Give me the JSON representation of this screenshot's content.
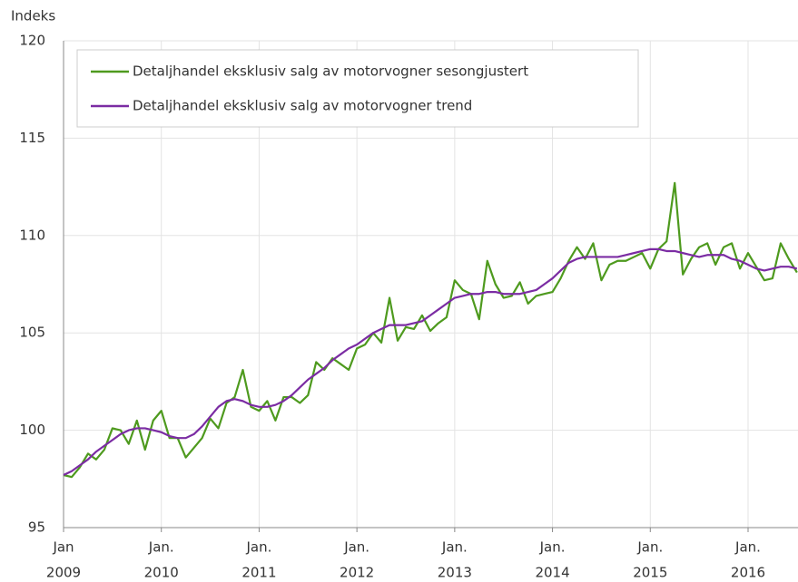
{
  "chart_data": {
    "type": "line",
    "y_label": "Indeks",
    "ylim": [
      95,
      120
    ],
    "yticks": [
      95,
      100,
      105,
      110,
      115,
      120
    ],
    "grid": true,
    "legend": "upper left",
    "categories": [
      [
        "Jan",
        "2009"
      ],
      null,
      null,
      null,
      null,
      null,
      null,
      null,
      null,
      null,
      null,
      null,
      [
        "Jan.",
        "2010"
      ],
      null,
      null,
      null,
      null,
      null,
      null,
      null,
      null,
      null,
      null,
      null,
      [
        "Jan.",
        "2011"
      ],
      null,
      null,
      null,
      null,
      null,
      null,
      null,
      null,
      null,
      null,
      null,
      [
        "Jan.",
        "2012"
      ],
      null,
      null,
      null,
      null,
      null,
      null,
      null,
      null,
      null,
      null,
      null,
      [
        "Jan.",
        "2013"
      ],
      null,
      null,
      null,
      null,
      null,
      null,
      null,
      null,
      null,
      null,
      null,
      [
        "Jan.",
        "2014"
      ],
      null,
      null,
      null,
      null,
      null,
      null,
      null,
      null,
      null,
      null,
      null,
      [
        "Jan.",
        "2015"
      ],
      null,
      null,
      null,
      null,
      null,
      null,
      null,
      null,
      null,
      null,
      null,
      [
        "Jan.",
        "2016"
      ],
      null,
      null,
      null,
      null,
      null,
      null
    ],
    "series": [
      {
        "name": "Detaljhandel eksklusiv salg av motorvogner sesongjustert",
        "color": "#4e9a1e",
        "values": [
          97.7,
          97.6,
          98.1,
          98.8,
          98.5,
          99.0,
          100.1,
          100.0,
          99.3,
          100.5,
          99.0,
          100.5,
          101.0,
          99.6,
          99.6,
          98.6,
          99.1,
          99.6,
          100.6,
          100.1,
          101.4,
          101.7,
          103.1,
          101.2,
          101.0,
          101.5,
          100.5,
          101.7,
          101.7,
          101.4,
          101.8,
          103.5,
          103.1,
          103.7,
          103.4,
          103.1,
          104.2,
          104.4,
          105.0,
          104.5,
          106.8,
          104.6,
          105.3,
          105.2,
          105.9,
          105.1,
          105.5,
          105.8,
          107.7,
          107.2,
          107.0,
          105.7,
          108.7,
          107.5,
          106.8,
          106.9,
          107.6,
          106.5,
          106.9,
          107.0,
          107.1,
          107.8,
          108.7,
          109.4,
          108.8,
          109.6,
          107.7,
          108.5,
          108.7,
          108.7,
          108.9,
          109.1,
          108.3,
          109.3,
          109.7,
          112.7,
          108.0,
          108.8,
          109.4,
          109.6,
          108.5,
          109.4,
          109.6,
          108.3,
          109.1,
          108.4,
          107.7,
          107.8,
          109.6,
          108.8,
          108.1
        ]
      },
      {
        "name": "Detaljhandel eksklusiv salg av motorvogner trend",
        "color": "#7b2ca3",
        "values": [
          97.7,
          97.9,
          98.2,
          98.5,
          98.9,
          99.2,
          99.5,
          99.8,
          100.0,
          100.1,
          100.1,
          100.0,
          99.9,
          99.7,
          99.6,
          99.6,
          99.8,
          100.2,
          100.7,
          101.2,
          101.5,
          101.6,
          101.5,
          101.3,
          101.2,
          101.2,
          101.3,
          101.5,
          101.8,
          102.2,
          102.6,
          102.9,
          103.2,
          103.6,
          103.9,
          104.2,
          104.4,
          104.7,
          105.0,
          105.2,
          105.4,
          105.4,
          105.4,
          105.5,
          105.6,
          105.9,
          106.2,
          106.5,
          106.8,
          106.9,
          107.0,
          107.0,
          107.1,
          107.1,
          107.0,
          107.0,
          107.0,
          107.1,
          107.2,
          107.5,
          107.8,
          108.2,
          108.6,
          108.8,
          108.9,
          108.9,
          108.9,
          108.9,
          108.9,
          109.0,
          109.1,
          109.2,
          109.3,
          109.3,
          109.2,
          109.2,
          109.1,
          109.0,
          108.9,
          109.0,
          109.0,
          109.0,
          108.8,
          108.7,
          108.5,
          108.3,
          108.2,
          108.3,
          108.4,
          108.4,
          108.3
        ]
      }
    ]
  }
}
